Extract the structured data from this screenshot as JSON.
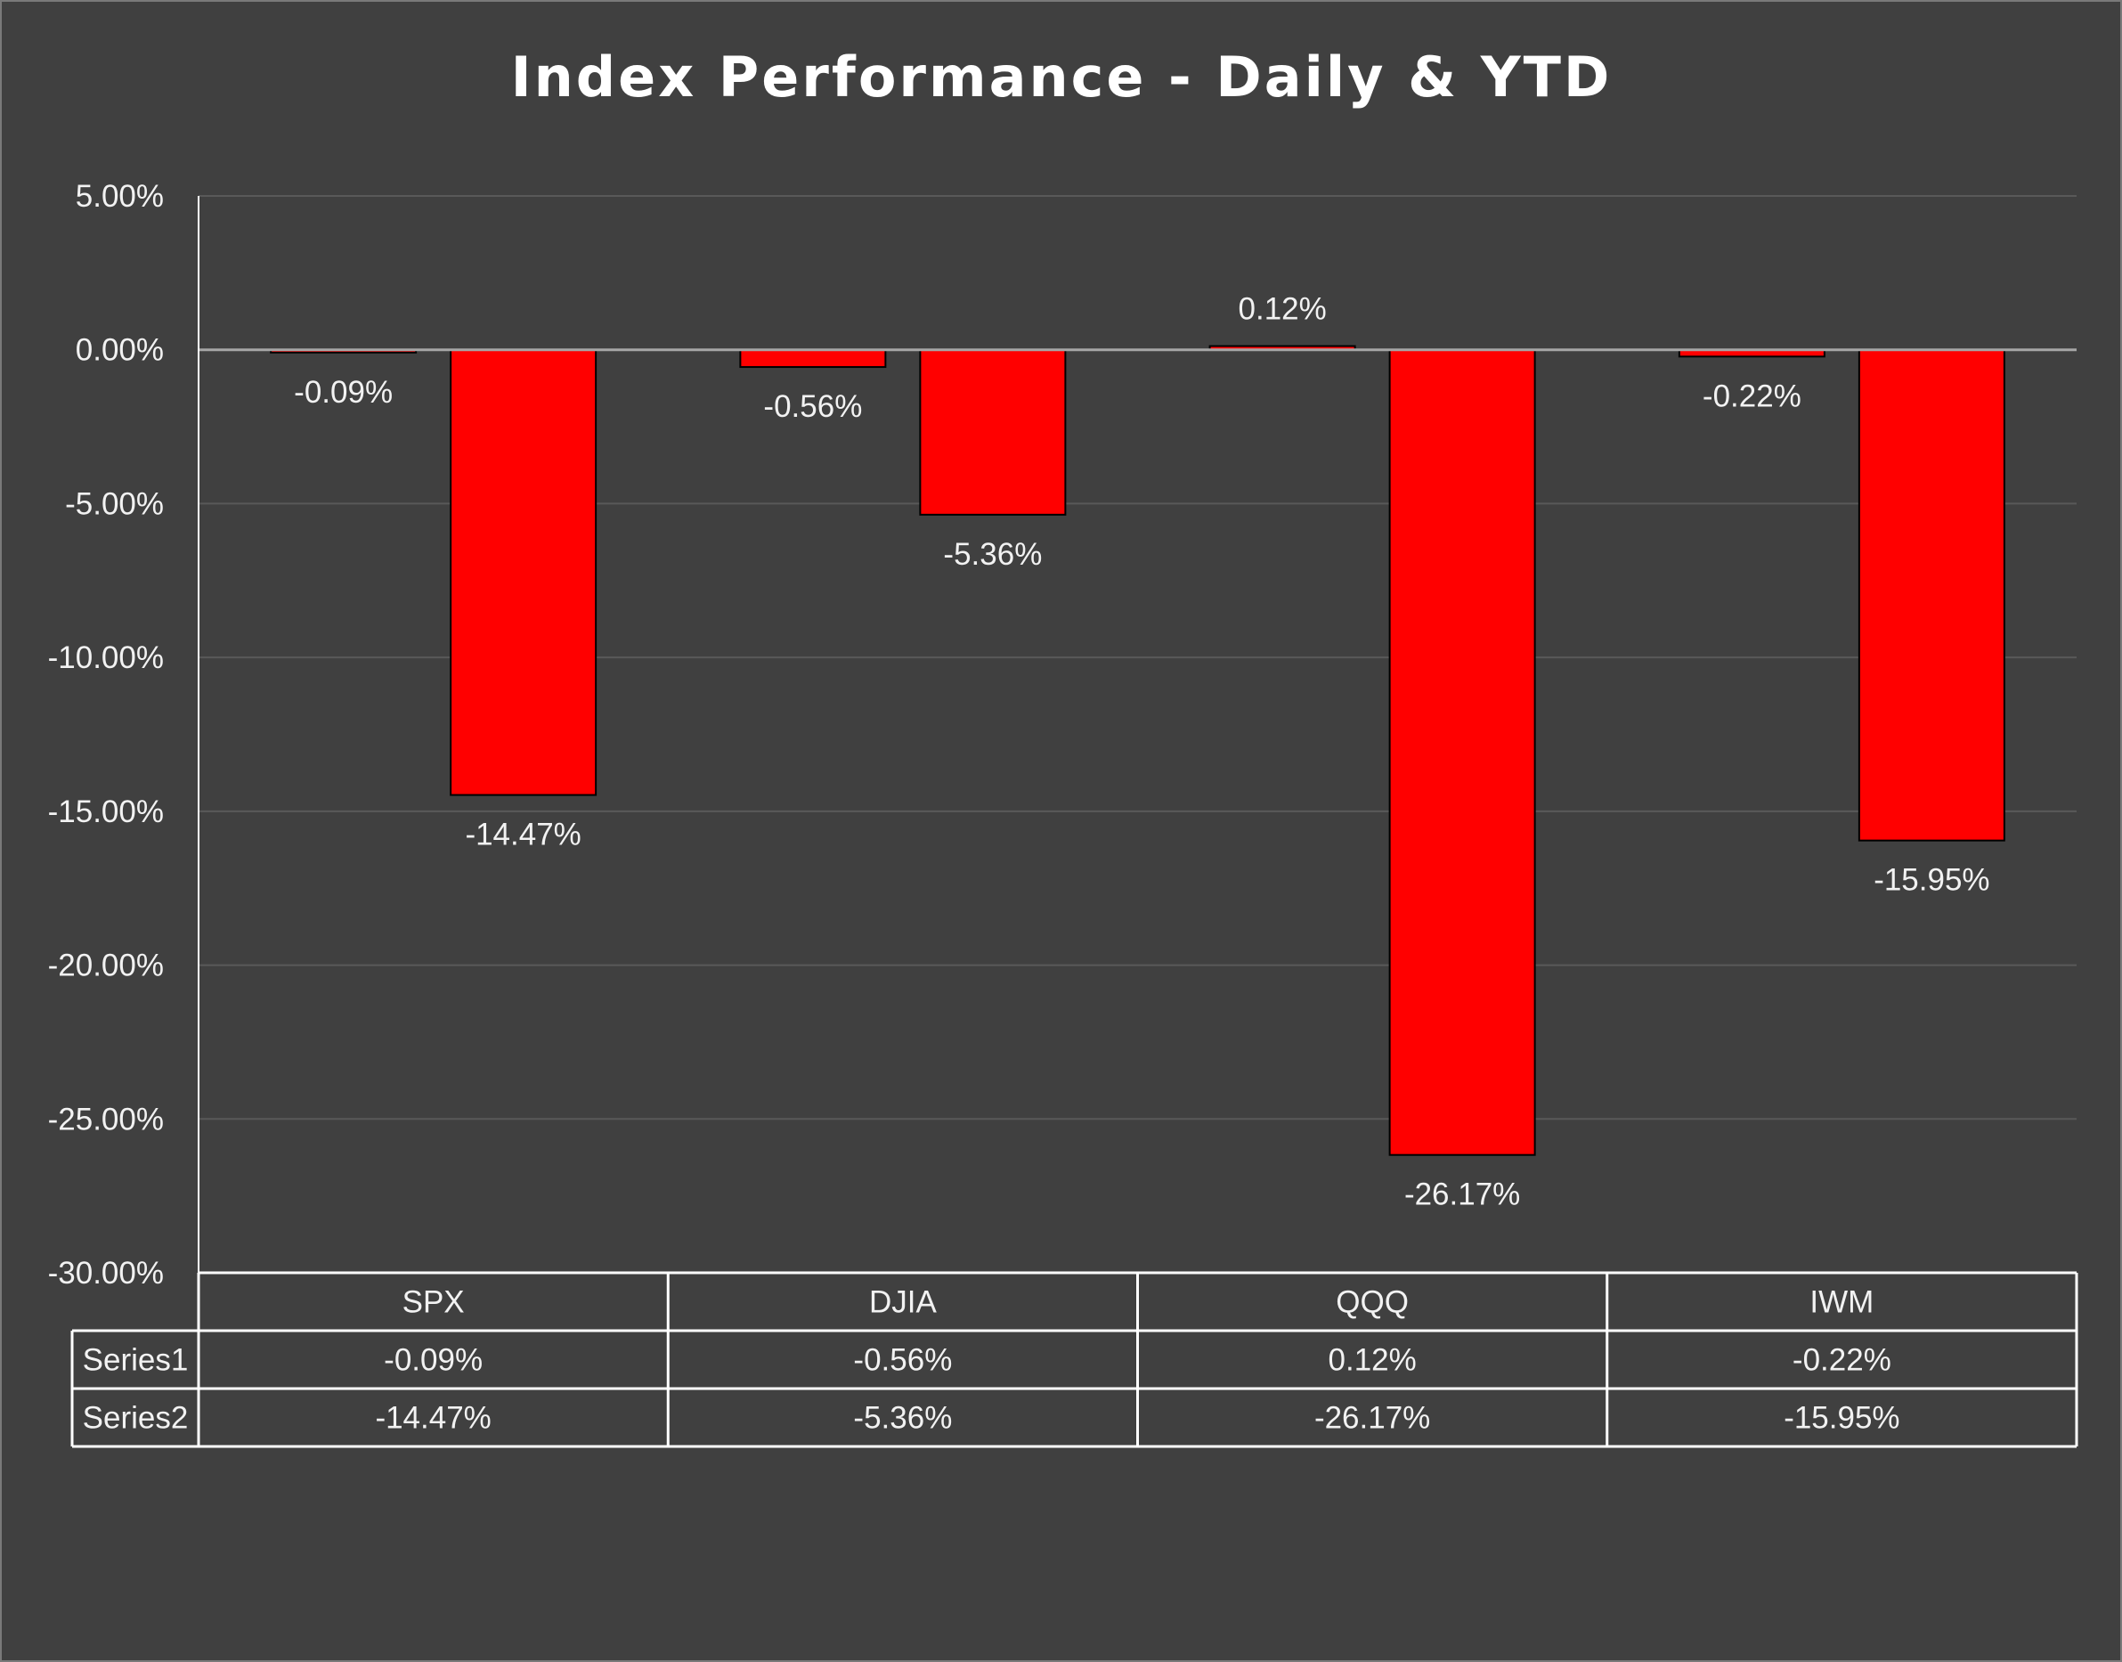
{
  "chart_data": {
    "type": "bar",
    "title": "Index Performance - Daily & YTD",
    "categories": [
      "SPX",
      "DJIA",
      "QQQ",
      "IWM"
    ],
    "series": [
      {
        "name": "Series1",
        "values": [
          -0.09,
          -0.56,
          0.12,
          -0.22
        ],
        "labels": [
          "-0.09%",
          "-0.56%",
          "0.12%",
          "-0.22%"
        ]
      },
      {
        "name": "Series2",
        "values": [
          -14.47,
          -5.36,
          -26.17,
          -15.95
        ],
        "labels": [
          "-14.47%",
          "-5.36%",
          "-26.17%",
          "-15.95%"
        ]
      }
    ],
    "ylim": [
      -30,
      5
    ],
    "yticks": [
      5,
      0,
      -5,
      -10,
      -15,
      -20,
      -25,
      -30
    ],
    "ytick_labels": [
      "5.00%",
      "0.00%",
      "-5.00%",
      "-10.00%",
      "-15.00%",
      "-20.00%",
      "-25.00%",
      "-30.00%"
    ],
    "grid": true,
    "data_table": true,
    "xlabel": "",
    "ylabel": "",
    "colors": {
      "background": "#404040",
      "bar_fill": "#ff0000",
      "bar_stroke": "#000000",
      "gridline": "#595959",
      "zero_line": "#a6a6a6",
      "axis_line": "#ffffff",
      "table_line": "#ffffff",
      "text": "#f2f2f2",
      "title": "#ffffff"
    }
  }
}
